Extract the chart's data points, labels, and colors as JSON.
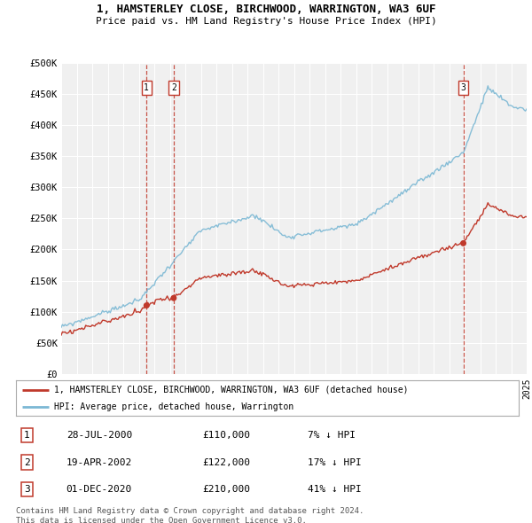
{
  "title": "1, HAMSTERLEY CLOSE, BIRCHWOOD, WARRINGTON, WA3 6UF",
  "subtitle": "Price paid vs. HM Land Registry's House Price Index (HPI)",
  "ylim": [
    0,
    500000
  ],
  "yticks": [
    0,
    50000,
    100000,
    150000,
    200000,
    250000,
    300000,
    350000,
    400000,
    450000,
    500000
  ],
  "ytick_labels": [
    "£0",
    "£50K",
    "£100K",
    "£150K",
    "£200K",
    "£250K",
    "£300K",
    "£350K",
    "£400K",
    "£450K",
    "£500K"
  ],
  "hpi_color": "#7bb8d4",
  "price_color": "#c0392b",
  "vline_color": "#c0392b",
  "background_color": "#ffffff",
  "plot_bg_color": "#f0f0f0",
  "grid_color": "#ffffff",
  "transactions": [
    {
      "label": "1",
      "date": "28-JUL-2000",
      "price": 110000,
      "pct": "7%"
    },
    {
      "label": "2",
      "date": "19-APR-2002",
      "price": 122000,
      "pct": "17%"
    },
    {
      "label": "3",
      "date": "01-DEC-2020",
      "price": 210000,
      "pct": "41%"
    }
  ],
  "legend_entries": [
    "1, HAMSTERLEY CLOSE, BIRCHWOOD, WARRINGTON, WA3 6UF (detached house)",
    "HPI: Average price, detached house, Warrington"
  ],
  "footer": "Contains HM Land Registry data © Crown copyright and database right 2024.\nThis data is licensed under the Open Government Licence v3.0.",
  "xstart_year": 1995,
  "xend_year": 2025
}
